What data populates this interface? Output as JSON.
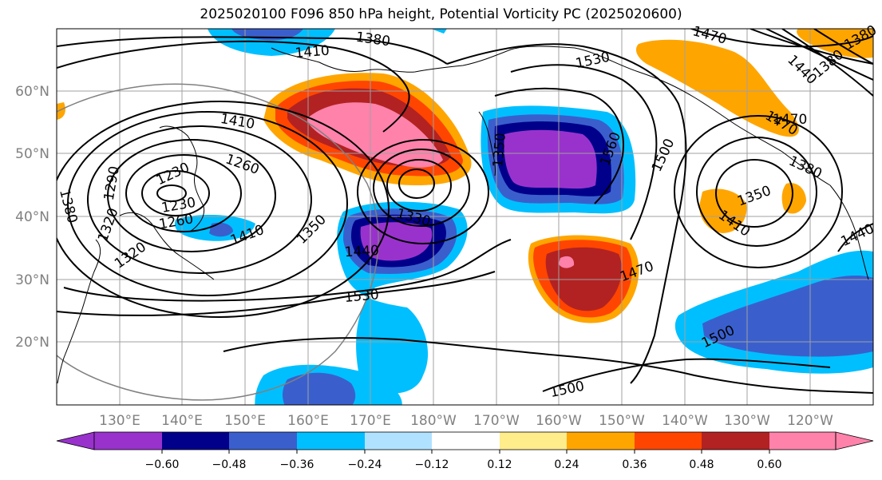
{
  "title": "2025020100 F096 850 hPa height, Potential Vorticity PC (2025020600)",
  "latitude_labels": [
    "60°N",
    "50°N",
    "40°N",
    "30°N",
    "20°N"
  ],
  "longitude_labels": [
    "130°E",
    "140°E",
    "150°E",
    "160°E",
    "170°E",
    "180°W",
    "170°W",
    "160°W",
    "150°W",
    "140°W",
    "130°W",
    "120°W"
  ],
  "contour_labels": [
    "1380",
    "1410",
    "1530",
    "1470",
    "1440",
    "1380",
    "1410",
    "1230",
    "1260",
    "1290",
    "1320",
    "1230",
    "1380",
    "1350",
    "1320",
    "1260",
    "1560",
    "1500",
    "1470",
    "1350",
    "1410",
    "1380",
    "1440",
    "1350",
    "1330",
    "1440",
    "1530",
    "1470",
    "1500",
    "1500",
    "1410",
    "1470",
    "1380"
  ],
  "colorbar": {
    "tick_labels": [
      "−0.60",
      "−0.48",
      "−0.36",
      "−0.24",
      "−0.12",
      "0.12",
      "0.24",
      "0.36",
      "0.48",
      "0.60"
    ],
    "colors": [
      "#9932CC",
      "#00008B",
      "#3A5FCD",
      "#00BFFF",
      "#B0E2FF",
      "#FFFFFF",
      "#FFEC8B",
      "#FFA500",
      "#FF4500",
      "#B22222",
      "#FF82AB"
    ]
  },
  "colors": {
    "contour": "#000000",
    "grid": "#A0A0A0",
    "coastline": "#000000",
    "axis_label": "#808080"
  }
}
